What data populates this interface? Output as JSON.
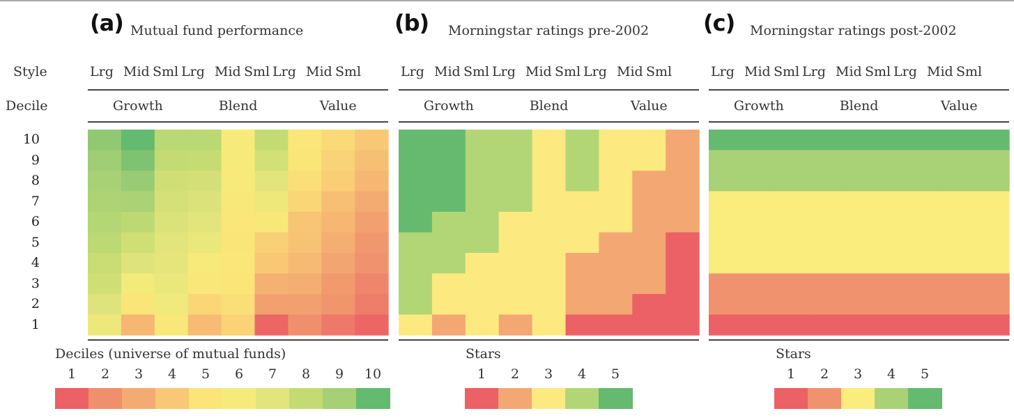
{
  "chart_data": [
    {
      "type": "heatmap",
      "panel_label": "(a)",
      "title": "Mutual fund performance",
      "row_header_style": "Style",
      "row_header_decile": "Decile",
      "size_labels": [
        "Lrg",
        "Mid",
        "Sml",
        "Lrg",
        "Mid",
        "Sml",
        "Lrg",
        "Mid",
        "Sml"
      ],
      "style_groups": [
        "Growth",
        "Blend",
        "Value"
      ],
      "y_labels": [
        "10",
        "9",
        "8",
        "7",
        "6",
        "5",
        "4",
        "3",
        "2",
        "1"
      ],
      "value_scale": "continuous",
      "values_note": "approximate decile (1-10) inferred from cell color; rows ordered decile 10 (top) to 1 (bottom)",
      "values": [
        [
          9.3,
          10.0,
          8.3,
          8.3,
          6.0,
          8.0,
          5.3,
          4.6,
          4.0
        ],
        [
          9.1,
          9.6,
          8.0,
          7.9,
          6.0,
          7.5,
          5.2,
          4.4,
          3.7
        ],
        [
          8.9,
          9.2,
          7.6,
          7.5,
          5.8,
          7.0,
          4.8,
          4.2,
          3.4
        ],
        [
          8.7,
          8.8,
          7.4,
          7.2,
          5.6,
          6.4,
          4.5,
          3.7,
          3.0
        ],
        [
          8.5,
          8.2,
          7.2,
          7.0,
          5.3,
          5.6,
          3.9,
          3.4,
          2.6
        ],
        [
          8.2,
          7.6,
          7.0,
          6.6,
          5.2,
          4.3,
          3.8,
          3.1,
          2.3
        ],
        [
          7.8,
          7.1,
          6.8,
          5.8,
          5.3,
          4.0,
          3.5,
          2.8,
          2.1
        ],
        [
          7.6,
          6.2,
          6.6,
          5.4,
          5.0,
          3.2,
          3.1,
          2.4,
          1.8
        ],
        [
          7.1,
          5.2,
          6.3,
          4.5,
          4.8,
          2.6,
          2.6,
          2.2,
          1.6
        ],
        [
          6.4,
          3.4,
          5.6,
          3.6,
          4.4,
          1.1,
          2.0,
          1.5,
          1.1
        ]
      ],
      "legend": {
        "title": "Deciles (universe of mutual funds)",
        "ticks": [
          "1",
          "2",
          "3",
          "4",
          "5",
          "6",
          "7",
          "8",
          "9",
          "10"
        ],
        "colors": [
          "#eb6165",
          "#f08f6c",
          "#f4ab72",
          "#f8c874",
          "#fbe478",
          "#f6eb7a",
          "#e2e47c",
          "#c3db72",
          "#a5d075",
          "#64ba6e"
        ]
      },
      "vmin": 1,
      "vmax": 10
    },
    {
      "type": "heatmap",
      "panel_label": "(b)",
      "title": "Morningstar ratings pre-2002",
      "size_labels": [
        "Lrg",
        "Mid",
        "Sml",
        "Lrg",
        "Mid",
        "Sml",
        "Lrg",
        "Mid",
        "Sml"
      ],
      "style_groups": [
        "Growth",
        "Blend",
        "Value"
      ],
      "y_labels": [
        "10",
        "9",
        "8",
        "7",
        "6",
        "5",
        "4",
        "3",
        "2",
        "1"
      ],
      "value_scale": "discrete",
      "values_note": "Morningstar stars (1-5); rows ordered decile 10 (top) to 1 (bottom)",
      "values": [
        [
          5,
          5,
          4,
          4,
          3,
          4,
          3,
          3,
          2
        ],
        [
          5,
          5,
          4,
          4,
          3,
          4,
          3,
          3,
          2
        ],
        [
          5,
          5,
          4,
          4,
          3,
          4,
          3,
          2,
          2
        ],
        [
          5,
          5,
          4,
          4,
          3,
          3,
          3,
          2,
          2
        ],
        [
          5,
          4,
          4,
          3,
          3,
          3,
          3,
          2,
          2
        ],
        [
          4,
          4,
          4,
          3,
          3,
          3,
          2,
          2,
          1
        ],
        [
          4,
          4,
          3,
          3,
          3,
          2,
          2,
          2,
          1
        ],
        [
          4,
          3,
          3,
          3,
          3,
          2,
          2,
          2,
          1
        ],
        [
          4,
          3,
          3,
          3,
          3,
          2,
          2,
          1,
          1
        ],
        [
          3,
          2,
          3,
          2,
          3,
          1,
          1,
          1,
          1
        ]
      ],
      "legend": {
        "title": "Stars",
        "ticks": [
          "1",
          "2",
          "3",
          "4",
          "5"
        ],
        "colors": [
          "#eb6165",
          "#f3a772",
          "#fcea80",
          "#b2d676",
          "#65ba70"
        ]
      }
    },
    {
      "type": "heatmap",
      "panel_label": "(c)",
      "title": "Morningstar ratings post-2002",
      "size_labels": [
        "Lrg",
        "Mid",
        "Sml",
        "Lrg",
        "Mid",
        "Sml",
        "Lrg",
        "Mid",
        "Sml"
      ],
      "style_groups": [
        "Growth",
        "Blend",
        "Value"
      ],
      "y_labels": [
        "10",
        "9",
        "8",
        "7",
        "6",
        "5",
        "4",
        "3",
        "2",
        "1"
      ],
      "value_scale": "discrete",
      "values_note": "Morningstar stars (1-5); rows ordered decile 10 (top) to 1 (bottom)",
      "values": [
        [
          5,
          5,
          5,
          5,
          5,
          5,
          5,
          5,
          5
        ],
        [
          4,
          4,
          4,
          4,
          4,
          4,
          4,
          4,
          4
        ],
        [
          4,
          4,
          4,
          4,
          4,
          4,
          4,
          4,
          4
        ],
        [
          3,
          3,
          3,
          3,
          3,
          3,
          3,
          3,
          3
        ],
        [
          3,
          3,
          3,
          3,
          3,
          3,
          3,
          3,
          3
        ],
        [
          3,
          3,
          3,
          3,
          3,
          3,
          3,
          3,
          3
        ],
        [
          3,
          3,
          3,
          3,
          3,
          3,
          3,
          3,
          3
        ],
        [
          2,
          2,
          2,
          2,
          2,
          2,
          2,
          2,
          2
        ],
        [
          2,
          2,
          2,
          2,
          2,
          2,
          2,
          2,
          2
        ],
        [
          1,
          1,
          1,
          1,
          1,
          1,
          1,
          1,
          1
        ]
      ],
      "legend": {
        "title": "Stars",
        "ticks": [
          "1",
          "2",
          "3",
          "4",
          "5"
        ],
        "colors": [
          "#eb6165",
          "#f0926e",
          "#fbec7e",
          "#a9d176",
          "#64ba6e"
        ]
      }
    }
  ]
}
